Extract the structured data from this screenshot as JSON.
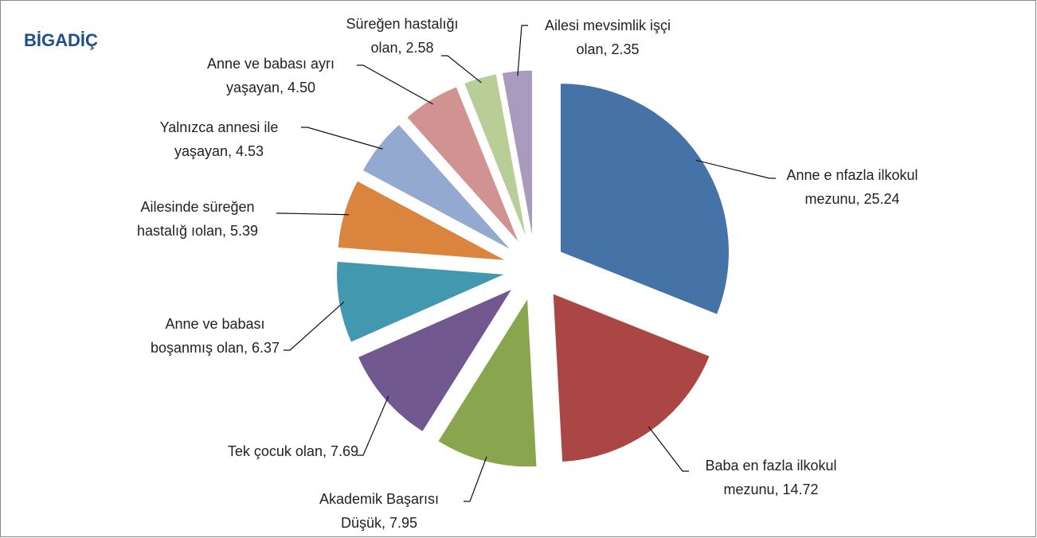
{
  "chart_data": {
    "type": "pie",
    "title": "BİGADİÇ",
    "labels": [
      [
        "Anne e nfazla ilkokul",
        "mezunu, 25.24"
      ],
      [
        "Baba en fazla ilkokul",
        "mezunu, 14.72"
      ],
      [
        "Akademik Başarısı",
        "Düşük, 7.95"
      ],
      [
        "Tek çocuk olan, 7.69"
      ],
      [
        "Anne ve babası",
        "boşanmış olan, 6.37"
      ],
      [
        "Ailesinde süreğen",
        "hastalığ ıolan, 5.39"
      ],
      [
        "Yalnızca annesi ile",
        "yaşayan, 4.53"
      ],
      [
        "Anne ve babası ayrı",
        "yaşayan, 4.50"
      ],
      [
        "Süreğen hastalığı",
        "olan, 2.58"
      ],
      [
        "Ailesi mevsimlik işçi",
        "olan, 2.35"
      ]
    ],
    "values": [
      25.24,
      14.72,
      7.95,
      7.69,
      6.37,
      5.39,
      4.53,
      4.5,
      2.58,
      2.35
    ],
    "colors": [
      "#4572a7",
      "#aa4643",
      "#89a54e",
      "#71588f",
      "#4198af",
      "#db843d",
      "#93a9cf",
      "#d19392",
      "#b9cd96",
      "#a99bbd"
    ],
    "exploded": true
  }
}
